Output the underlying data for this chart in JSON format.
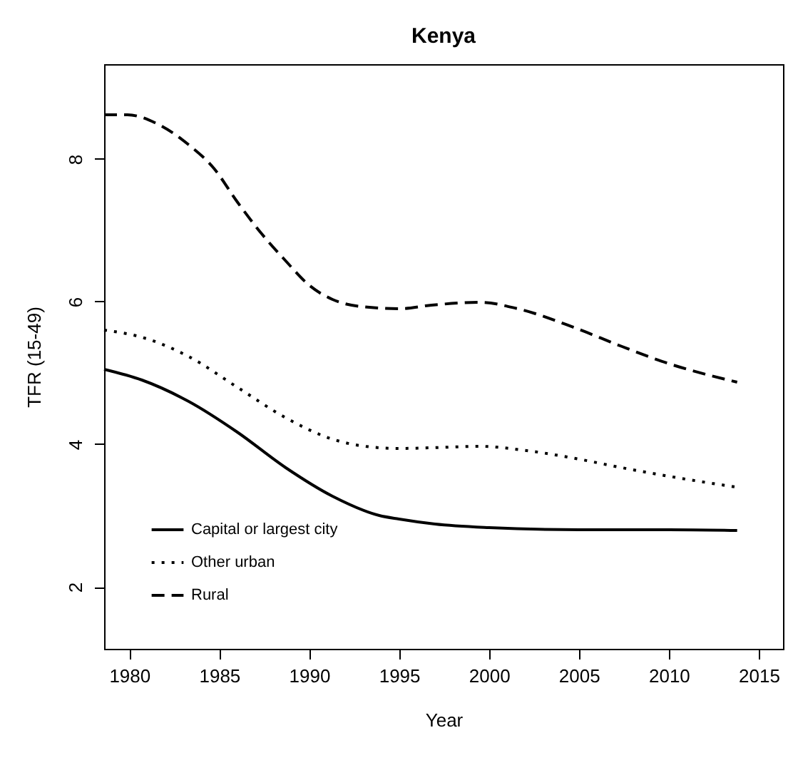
{
  "chart_data": {
    "type": "line",
    "title": "Kenya",
    "xlabel": "Year",
    "ylabel": "TFR (15-49)",
    "xlim": [
      1978.6,
      2016.35
    ],
    "xticks": [
      1980,
      1985,
      1990,
      1995,
      2000,
      2005,
      2010,
      2015
    ],
    "ylim": [
      1.13,
      9.33
    ],
    "yticks": [
      2,
      4,
      6,
      8
    ],
    "legend": "bottom left",
    "series": [
      {
        "name": "Capital or largest city",
        "color": "#000000",
        "line_style": "solid",
        "x": [
          1978.6,
          1980.7,
          1983.3,
          1986,
          1988.7,
          1991.3,
          1993.9,
          1995,
          1997,
          2000,
          2005,
          2010,
          2013.8
        ],
        "values": [
          5.05,
          4.9,
          4.6,
          4.17,
          3.67,
          3.27,
          3.0,
          2.95,
          2.88,
          2.83,
          2.8,
          2.8,
          2.79
        ]
      },
      {
        "name": "Other urban",
        "color": "#000000",
        "line_style": "dotted",
        "x": [
          1978.6,
          1980.7,
          1983.3,
          1986,
          1988.7,
          1991.3,
          1993.9,
          1995,
          1996.8,
          1999.5,
          2002.1,
          2004.8,
          2007.4,
          2010,
          2013.7
        ],
        "values": [
          5.6,
          5.5,
          5.23,
          4.8,
          4.37,
          4.07,
          3.95,
          3.94,
          3.95,
          3.97,
          3.91,
          3.8,
          3.67,
          3.55,
          3.4
        ]
      },
      {
        "name": "Rural",
        "color": "#000000",
        "line_style": "dashed",
        "x": [
          1978.6,
          1979.9,
          1981.5,
          1983.3,
          1984.7,
          1986,
          1987.3,
          1988.7,
          1990,
          1991.3,
          1992.9,
          1995,
          1996.8,
          1999.5,
          2001.6,
          2004.8,
          2007.4,
          2010,
          2013.8
        ],
        "values": [
          8.62,
          8.62,
          8.5,
          8.2,
          7.87,
          7.4,
          6.97,
          6.57,
          6.23,
          6.03,
          5.93,
          5.9,
          5.95,
          5.99,
          5.9,
          5.63,
          5.37,
          5.13,
          4.87
        ]
      }
    ]
  }
}
